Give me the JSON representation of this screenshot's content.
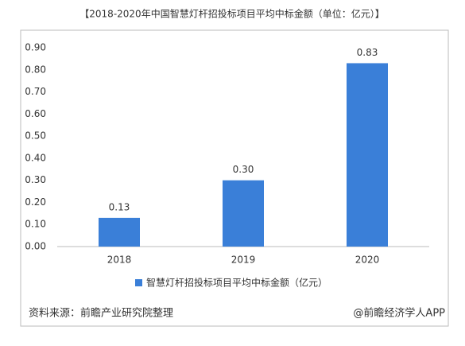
{
  "chart_data": {
    "type": "bar",
    "title": "【2018-2020年中国智慧灯杆招投标项目平均中标金额（单位：亿元）】",
    "categories": [
      "2018",
      "2019",
      "2020"
    ],
    "series": [
      {
        "name": "智慧灯杆招投标项目平均中标金额（亿元）",
        "color": "#3a7fd8",
        "values": [
          0.13,
          0.3,
          0.83
        ],
        "value_labels": [
          "0.13",
          "0.30",
          "0.83"
        ]
      }
    ],
    "ylim": [
      0,
      0.9
    ],
    "yticks": [
      {
        "value": 0,
        "label": "0.00"
      },
      {
        "value": 0.1,
        "label": "0.10"
      },
      {
        "value": 0.2,
        "label": "0.20"
      },
      {
        "value": 0.3,
        "label": "0.30"
      },
      {
        "value": 0.4,
        "label": "0.40"
      },
      {
        "value": 0.5,
        "label": "0.50"
      },
      {
        "value": 0.6,
        "label": "0.60"
      },
      {
        "value": 0.7,
        "label": "0.70"
      },
      {
        "value": 0.8,
        "label": "0.80"
      },
      {
        "value": 0.9,
        "label": "0.90"
      }
    ],
    "grid": false,
    "legend": "bottom",
    "source": "资料来源：前瞻产业研究院整理",
    "credit": "@前瞻经济学人APP"
  }
}
